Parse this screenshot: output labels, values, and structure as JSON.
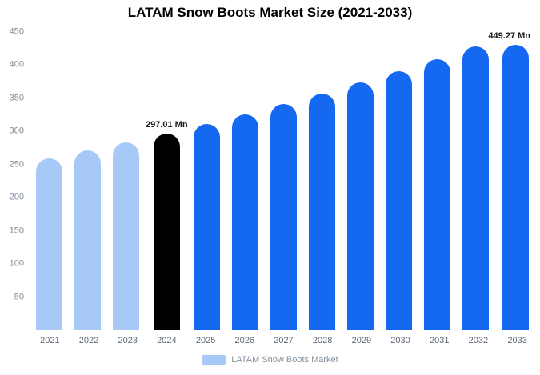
{
  "chart_data": {
    "type": "bar",
    "title": "LATAM Snow Boots Market Size (2021-2033)",
    "categories": [
      "2021",
      "2022",
      "2023",
      "2024",
      "2025",
      "2026",
      "2027",
      "2028",
      "2029",
      "2030",
      "2031",
      "2032",
      "2033"
    ],
    "values": [
      258.9,
      271.1,
      283.8,
      297.01,
      311.0,
      325.6,
      340.9,
      356.9,
      373.7,
      391.2,
      409.6,
      428.9,
      449.27
    ],
    "unit": "Mn",
    "ylim": [
      0,
      450
    ],
    "yticks": [
      50,
      100,
      150,
      200,
      250,
      300,
      350,
      400,
      450
    ],
    "grid": false,
    "legend_position": "bottom",
    "legend": "LATAM Snow Boots Market",
    "colors": {
      "historical": "#a6c9f8",
      "highlight": "#000000",
      "forecast": "#1569f0"
    },
    "bar_colors": [
      "#a6c9f8",
      "#a6c9f8",
      "#a6c9f8",
      "#000000",
      "#1569f0",
      "#1569f0",
      "#1569f0",
      "#1569f0",
      "#1569f0",
      "#1569f0",
      "#1569f0",
      "#1569f0",
      "#1569f0"
    ],
    "data_labels": [
      {
        "index": 3,
        "text": "297.01 Mn"
      },
      {
        "index": 12,
        "text": "449.27 Mn"
      }
    ]
  }
}
